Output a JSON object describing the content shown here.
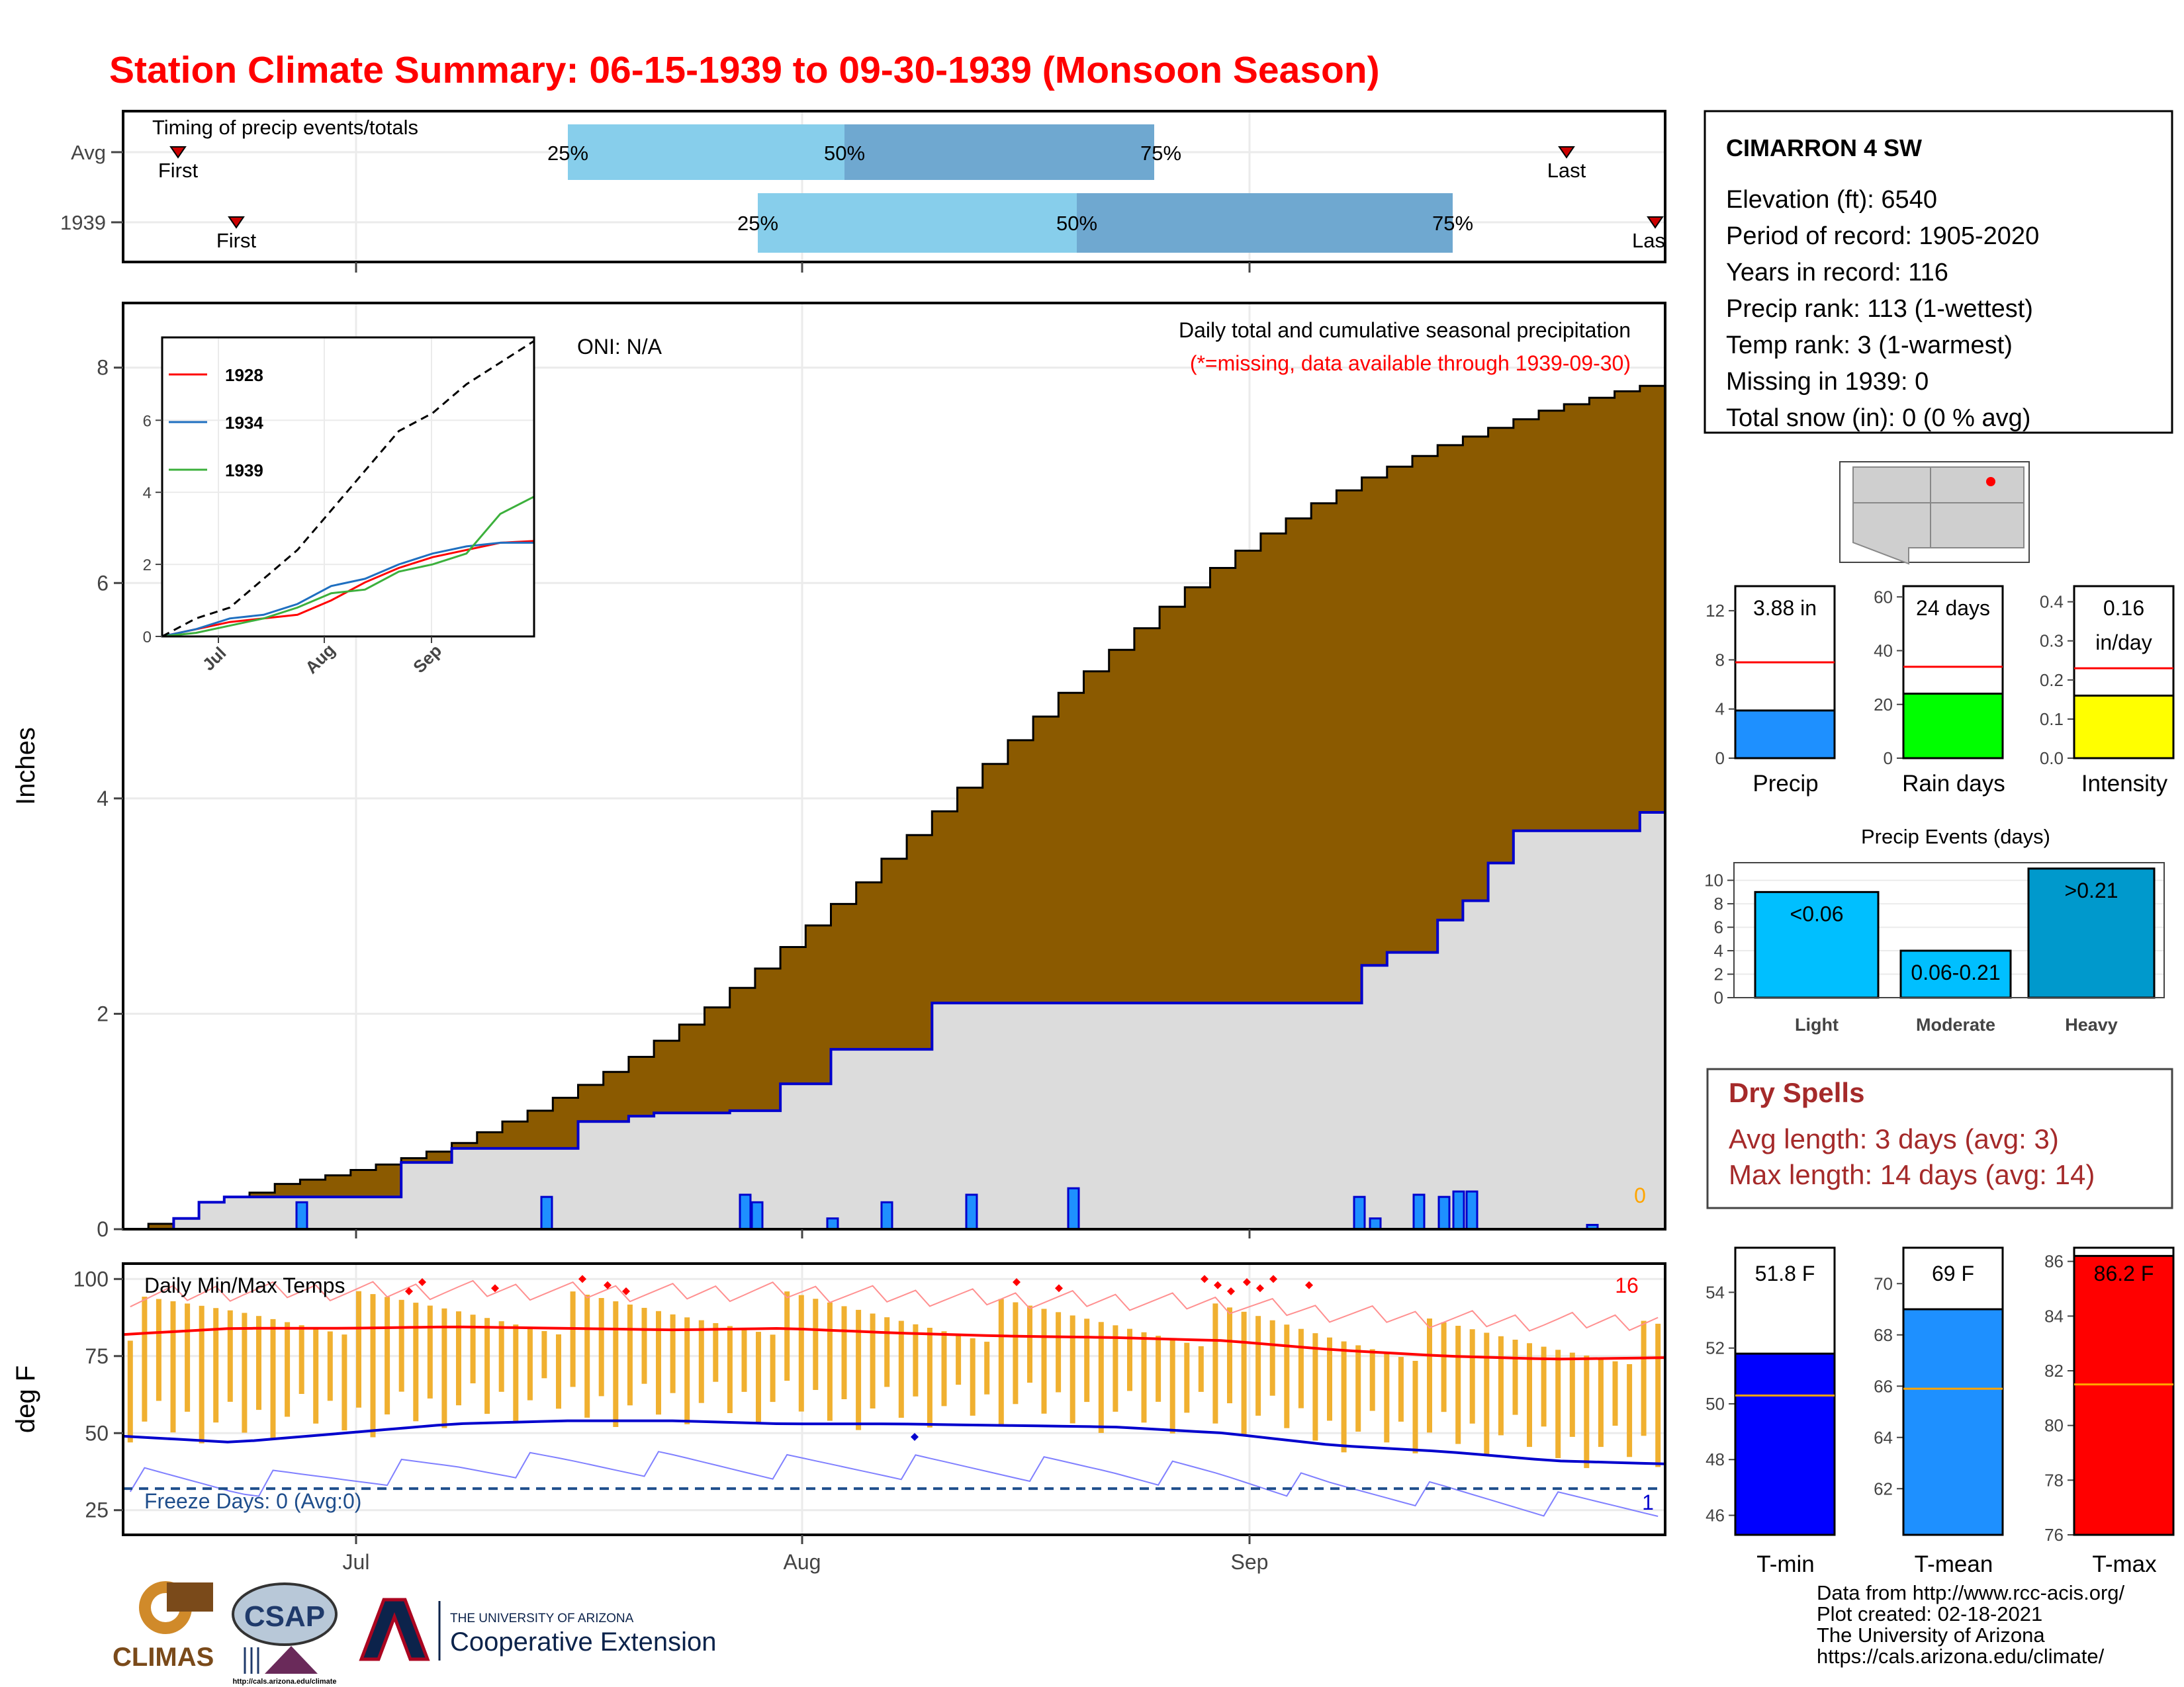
{
  "title": "Station Climate Summary: 06-15-1939 to 09-30-1939 (Monsoon Season)",
  "colors": {
    "title": "#ff0000",
    "cumulative_avg": "#8b5a00",
    "cumulative_year": "#dcdcdc",
    "daily_bar": "#1e90ff",
    "temp_bar": "#f0b030",
    "tmax": "#ff0000",
    "tmin": "#0000cd",
    "freeze_line": "#1f4e8c",
    "dry_spells": "#a52a2a",
    "quartile_light": "#87ceeb",
    "quartile_dark": "#6fa8d0"
  },
  "timing": {
    "label": "Timing of precip events/totals",
    "rows": [
      {
        "label": "Avg",
        "first_label": "First",
        "last_label": "Last",
        "q25": "25%",
        "q50": "50%",
        "q75": "75%"
      },
      {
        "label": "1939",
        "first_label": "First",
        "last_label": "Last",
        "q25": "25%",
        "q50": "50%",
        "q75": "75%"
      }
    ]
  },
  "station": {
    "name": "CIMARRON 4 SW",
    "lines": [
      "Elevation (ft): 6540",
      "Period of record: 1905-2020",
      "Years in record: 116",
      "Precip rank: 113 (1-wettest)",
      "Temp rank: 3 (1-warmest)",
      "Missing in 1939: 0",
      "Total snow (in): 0 (0 % avg)"
    ]
  },
  "main_chart": {
    "ylabel": "Inches",
    "oni": "ONI: N/A",
    "note1": "Daily total and cumulative seasonal precipitation",
    "note2": "(*=missing, data available through 1939-09-30)",
    "missing_count": "0",
    "yticks": [
      "0",
      "2",
      "4",
      "6",
      "8"
    ],
    "xticks": [
      "Jul",
      "Aug",
      "Sep"
    ]
  },
  "chart_data": [
    {
      "type": "area",
      "title": "Daily total and cumulative seasonal precipitation",
      "ylabel": "Inches",
      "ylim": [
        0,
        8.6
      ],
      "x_start": "1939-06-15",
      "x_end": "1939-09-30",
      "series": [
        {
          "name": "Avg cumulative",
          "values": [
            0,
            0.05,
            0.1,
            0.18,
            0.26,
            0.34,
            0.42,
            0.46,
            0.5,
            0.55,
            0.6,
            0.66,
            0.72,
            0.8,
            0.9,
            1.0,
            1.1,
            1.22,
            1.34,
            1.46,
            1.6,
            1.75,
            1.9,
            2.06,
            2.24,
            2.42,
            2.62,
            2.82,
            3.02,
            3.22,
            3.44,
            3.66,
            3.88,
            4.1,
            4.32,
            4.54,
            4.76,
            4.98,
            5.18,
            5.38,
            5.58,
            5.78,
            5.96,
            6.14,
            6.3,
            6.46,
            6.6,
            6.74,
            6.86,
            6.98,
            7.08,
            7.18,
            7.28,
            7.36,
            7.44,
            7.52,
            7.6,
            7.66,
            7.72,
            7.78,
            7.83,
            7.86
          ]
        },
        {
          "name": "1939 cumulative",
          "values": [
            0,
            0.0,
            0.1,
            0.25,
            0.3,
            0.3,
            0.3,
            0.3,
            0.3,
            0.3,
            0.3,
            0.62,
            0.62,
            0.75,
            0.75,
            0.75,
            0.75,
            0.75,
            1.0,
            1.0,
            1.05,
            1.08,
            1.08,
            1.08,
            1.1,
            1.1,
            1.35,
            1.35,
            1.67,
            1.67,
            1.67,
            1.67,
            2.1,
            2.1,
            2.1,
            2.1,
            2.1,
            2.1,
            2.1,
            2.1,
            2.1,
            2.1,
            2.1,
            2.1,
            2.1,
            2.1,
            2.1,
            2.1,
            2.1,
            2.45,
            2.57,
            2.57,
            2.87,
            3.05,
            3.4,
            3.7,
            3.7,
            3.7,
            3.7,
            3.7,
            3.87,
            3.88
          ]
        }
      ],
      "annual_daily_peaks_in": [
        0.25,
        0.3,
        0.32,
        0.25,
        0.1,
        0.25,
        0.32,
        0.38,
        0.3,
        0.1,
        0.32,
        0.3,
        0.35,
        0.35,
        0.04
      ]
    },
    {
      "type": "line",
      "title": "",
      "ylim": [
        0,
        8.3
      ],
      "xticks": [
        "Jul",
        "Aug",
        "Sep"
      ],
      "yticks": [
        "0",
        "2",
        "4",
        "6"
      ],
      "series": [
        {
          "name": "1928",
          "values": [
            0,
            0.2,
            0.4,
            0.5,
            0.6,
            1.0,
            1.5,
            1.9,
            2.2,
            2.4,
            2.6,
            2.65
          ]
        },
        {
          "name": "1934",
          "values": [
            0,
            0.2,
            0.5,
            0.6,
            0.9,
            1.4,
            1.6,
            2.0,
            2.3,
            2.5,
            2.6,
            2.6
          ]
        },
        {
          "name": "1939",
          "values": [
            0,
            0.1,
            0.3,
            0.5,
            0.8,
            1.2,
            1.3,
            1.8,
            2.0,
            2.3,
            3.4,
            3.88
          ]
        },
        {
          "name": "",
          "dashed": true,
          "values": [
            0,
            0.5,
            0.8,
            1.6,
            2.4,
            3.5,
            4.6,
            5.7,
            6.2,
            7.0,
            7.6,
            8.2
          ]
        }
      ]
    },
    {
      "type": "bar",
      "title": "",
      "categories": [
        "Precip",
        "Rain days",
        "Intensity"
      ],
      "values": [
        3.88,
        24,
        0.16
      ],
      "averages": [
        7.8,
        34,
        0.23
      ],
      "labels": [
        "3.88 in",
        "24 days",
        "0.16 in/day"
      ]
    },
    {
      "type": "bar",
      "title": "Precip Events (days)",
      "categories": [
        "Light",
        "Moderate",
        "Heavy"
      ],
      "bar_labels": [
        "<0.06",
        "0.06-0.21",
        ">0.21"
      ],
      "values": [
        9,
        4,
        11
      ],
      "ylim": [
        0,
        11.5
      ],
      "yticks": [
        "0",
        "2",
        "4",
        "6",
        "8",
        "10"
      ]
    },
    {
      "type": "bar",
      "title": "Daily Min/Max Temps",
      "ylabel": "deg F",
      "ylim": [
        17,
        105
      ],
      "yticks": [
        "25",
        "50",
        "75",
        "100"
      ],
      "series": [
        {
          "name": "Tmax avg",
          "values": [
            82,
            84,
            84,
            84.5,
            84,
            83.5,
            84,
            82.5,
            81.5,
            81,
            80,
            77,
            75,
            74,
            74.5
          ]
        },
        {
          "name": "Tmin avg",
          "values": [
            49,
            47,
            50,
            53,
            54,
            54,
            53,
            53,
            52.5,
            52,
            50,
            46,
            44,
            41,
            40
          ]
        }
      ],
      "freeze_days": "Freeze Days: 0 (Avg:0)",
      "record_high_count": "16",
      "record_low_count": "1"
    },
    {
      "type": "bar",
      "title": "",
      "categories": [
        "T-min",
        "T-mean",
        "T-max"
      ],
      "values": [
        51.8,
        69,
        86.2
      ],
      "averages": [
        50.3,
        65.9,
        81.5
      ],
      "labels": [
        "51.8 F",
        "69 F",
        "86.2 F"
      ]
    }
  ],
  "inset_legend": [
    "1928",
    "1934",
    "1939"
  ],
  "bars3": {
    "labels": [
      "Precip",
      "Rain days",
      "Intensity"
    ]
  },
  "events": {
    "title": "Precip Events (days)",
    "categories": [
      "Light",
      "Moderate",
      "Heavy"
    ],
    "bar_labels": [
      "<0.06",
      "0.06-0.21",
      ">0.21"
    ]
  },
  "dry": {
    "title": "Dry Spells",
    "line1": "Avg length: 3 days (avg: 3)",
    "line2": "Max length: 14 days (avg: 14)"
  },
  "temps": {
    "label": "Daily Min/Max Temps",
    "ylabel": "deg F",
    "freeze": "Freeze Days: 0 (Avg:0)",
    "high_count": "16",
    "low_count": "1"
  },
  "tbars": {
    "labels": [
      "T-min",
      "T-mean",
      "T-max"
    ]
  },
  "logos": {
    "climas": "CLIMAS",
    "csap": "CSAP",
    "csap_url": "http://cals.arizona.edu/climate",
    "ua_line1": "THE UNIVERSITY OF ARIZONA",
    "ua_line2": "Cooperative Extension"
  },
  "footer": [
    "Data from http://www.rcc-acis.org/",
    "Plot created: 02-18-2021",
    "The University of Arizona",
    "https://cals.arizona.edu/climate/"
  ]
}
